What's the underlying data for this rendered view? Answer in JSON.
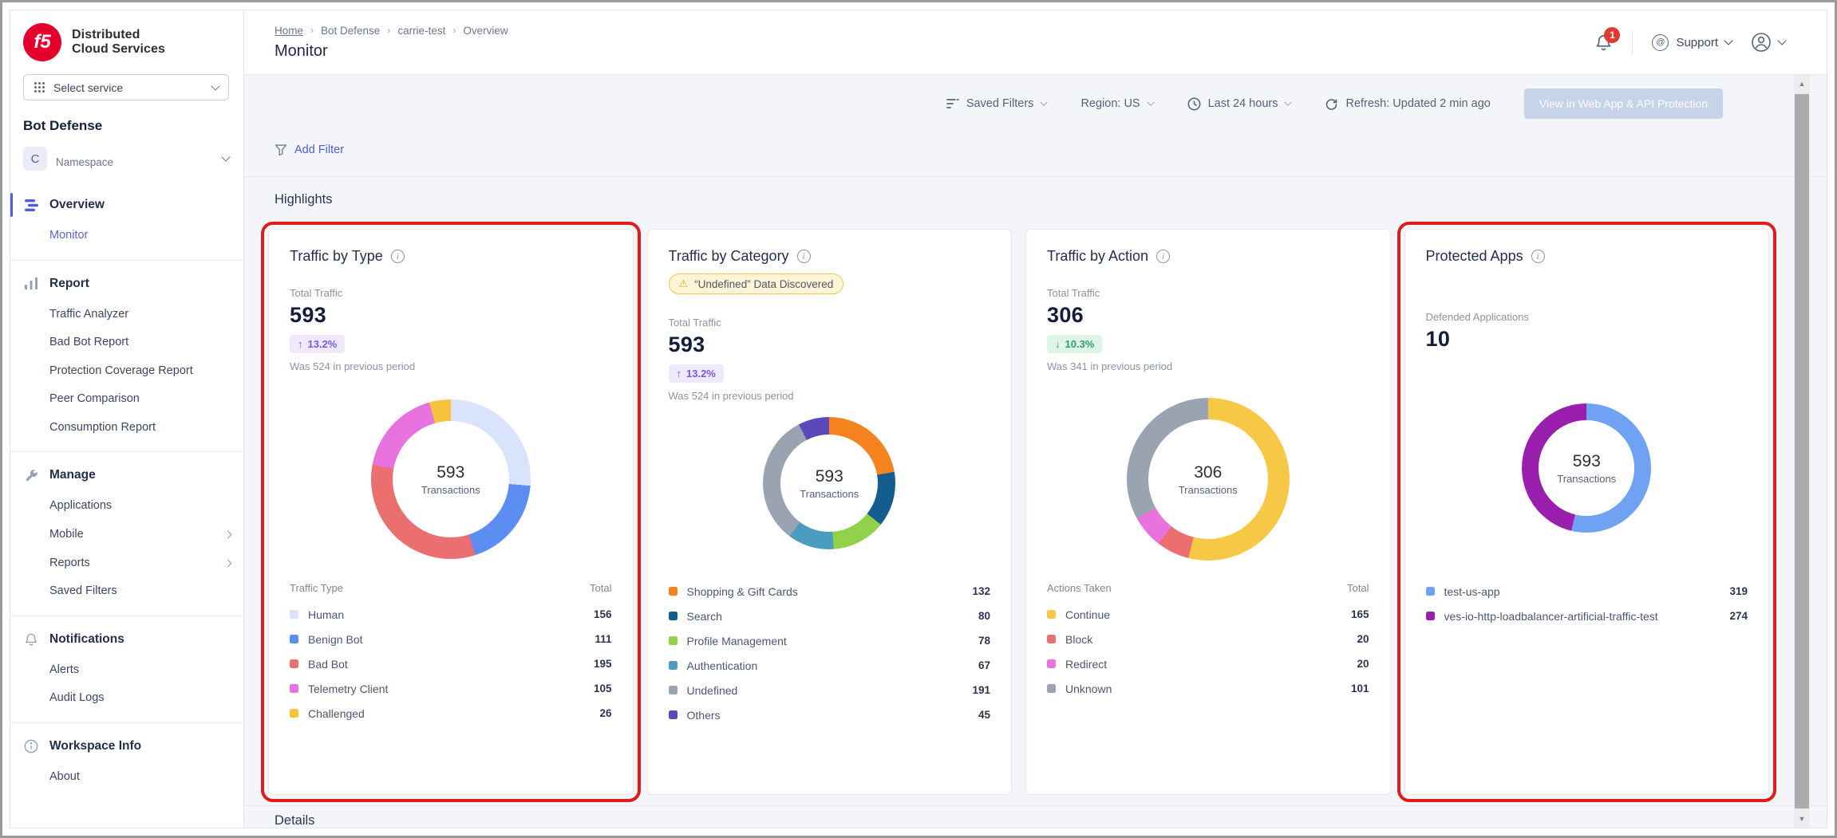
{
  "brand": {
    "logo": "f5",
    "title_line1": "Distributed",
    "title_line2": "Cloud Services"
  },
  "sidebar": {
    "select_service": "Select service",
    "product_title": "Bot Defense",
    "namespace": {
      "avatar": "C",
      "label": "Namespace"
    },
    "nav": [
      {
        "icon": "overview-icon",
        "label": "Overview",
        "active": true,
        "children": [
          {
            "label": "Monitor",
            "active": true
          }
        ]
      },
      {
        "icon": "report-icon",
        "label": "Report",
        "children": [
          {
            "label": "Traffic Analyzer"
          },
          {
            "label": "Bad Bot Report"
          },
          {
            "label": "Protection Coverage Report"
          },
          {
            "label": "Peer Comparison"
          },
          {
            "label": "Consumption Report"
          }
        ]
      },
      {
        "icon": "manage-icon",
        "label": "Manage",
        "children": [
          {
            "label": "Applications"
          },
          {
            "label": "Mobile",
            "chevron": true
          },
          {
            "label": "Reports",
            "chevron": true
          },
          {
            "label": "Saved Filters"
          }
        ]
      },
      {
        "icon": "notifications-icon",
        "label": "Notifications",
        "children": [
          {
            "label": "Alerts"
          },
          {
            "label": "Audit Logs"
          }
        ]
      },
      {
        "icon": "workspace-info-icon",
        "label": "Workspace Info",
        "children": [
          {
            "label": "About"
          }
        ]
      }
    ]
  },
  "header": {
    "breadcrumb": [
      "Home",
      "Bot Defense",
      "carrie-test",
      "Overview"
    ],
    "page_title": "Monitor",
    "notification_count": "1",
    "support_label": "Support"
  },
  "toolbar": {
    "saved_filters": "Saved Filters",
    "region": "Region: US",
    "time_range": "Last 24 hours",
    "refresh": "Refresh: Updated 2 min ago",
    "view_button": "View in Web App & API Protection"
  },
  "filters": {
    "add_filter": "Add Filter"
  },
  "sections": {
    "highlights": "Highlights",
    "details": "Details"
  },
  "accent_colors": {
    "link": "#4c5ed9",
    "annotation": "#e01c1c",
    "badge_red": "#e0392e"
  },
  "chart_data": [
    {
      "type": "donut",
      "title": "Traffic by Type",
      "stat_label": "Total Traffic",
      "stat_value": "593",
      "delta": {
        "direction": "up",
        "text": "13.2%",
        "style": "purple"
      },
      "previous": "Was 524 in previous period",
      "center_value": "593",
      "center_label": "Transactions",
      "legend_header": {
        "label": "Traffic Type",
        "value": "Total"
      },
      "segments": [
        {
          "label": "Human",
          "value": 156,
          "color": "#d9e3fb"
        },
        {
          "label": "Benign Bot",
          "value": 111,
          "color": "#5b8df2"
        },
        {
          "label": "Bad Bot",
          "value": 195,
          "color": "#eb6f6f"
        },
        {
          "label": "Telemetry Client",
          "value": 105,
          "color": "#e873de"
        },
        {
          "label": "Challenged",
          "value": 26,
          "color": "#f6c33d"
        }
      ],
      "annotated": true
    },
    {
      "type": "donut",
      "title": "Traffic by Category",
      "warning_badge": "“Undefined” Data Discovered",
      "stat_label": "Total Traffic",
      "stat_value": "593",
      "delta": {
        "direction": "up",
        "text": "13.2%",
        "style": "purple"
      },
      "previous": "Was 524 in previous period",
      "center_value": "593",
      "center_label": "Transactions",
      "segments": [
        {
          "label": "Shopping & Gift Cards",
          "value": 132,
          "color": "#f5831f"
        },
        {
          "label": "Search",
          "value": 80,
          "color": "#135e8e"
        },
        {
          "label": "Profile Management",
          "value": 78,
          "color": "#92d24b"
        },
        {
          "label": "Authentication",
          "value": 67,
          "color": "#4a9dbf"
        },
        {
          "label": "Undefined",
          "value": 191,
          "color": "#9aa3b2"
        },
        {
          "label": "Others",
          "value": 45,
          "color": "#5a49ba"
        }
      ],
      "annotated": false
    },
    {
      "type": "donut",
      "title": "Traffic by Action",
      "stat_label": "Total Traffic",
      "stat_value": "306",
      "delta": {
        "direction": "down",
        "text": "10.3%",
        "style": "green"
      },
      "previous": "Was 341 in previous period",
      "center_value": "306",
      "center_label": "Transactions",
      "legend_header": {
        "label": "Actions Taken",
        "value": "Total"
      },
      "segments": [
        {
          "label": "Continue",
          "value": 165,
          "color": "#f6c845"
        },
        {
          "label": "Block",
          "value": 20,
          "color": "#eb6f6f"
        },
        {
          "label": "Redirect",
          "value": 20,
          "color": "#e873de"
        },
        {
          "label": "Unknown",
          "value": 101,
          "color": "#9aa3b2"
        }
      ],
      "annotated": false
    },
    {
      "type": "donut",
      "title": "Protected Apps",
      "stat_label": "Defended Applications",
      "stat_value": "10",
      "center_value": "593",
      "center_label": "Transactions",
      "segments": [
        {
          "label": "test-us-app",
          "value": 319,
          "color": "#6fa2f2"
        },
        {
          "label": "ves-io-http-loadbalancer-artificial-traffic-test",
          "value": 274,
          "color": "#9a1fae"
        }
      ],
      "annotated": true
    }
  ]
}
